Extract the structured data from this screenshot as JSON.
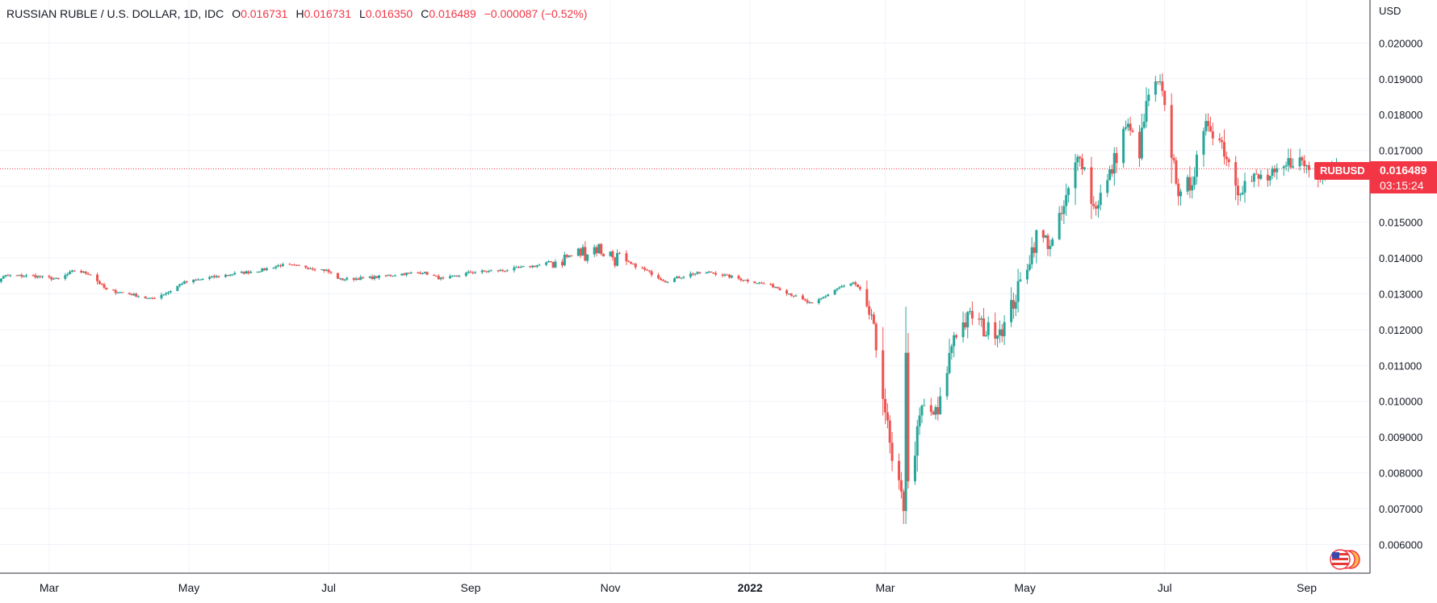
{
  "header": {
    "symbol": "RUSSIAN RUBLE / U.S. DOLLAR, 1D, IDC",
    "open_label": "O",
    "open": "0.016731",
    "high_label": "H",
    "high": "0.016731",
    "low_label": "L",
    "low": "0.016350",
    "close_label": "C",
    "close": "0.016489",
    "change": "−0.000087 (−0.52%)"
  },
  "price_axis": {
    "currency": "USD"
  },
  "last_price": {
    "symbol": "RUBUSD",
    "price": "0.016489",
    "countdown": "03:15:24"
  },
  "colors": {
    "up": "#26a69a",
    "down": "#ef5350",
    "grid": "#f0f3fa",
    "text": "#131722",
    "badge": "#f23645"
  },
  "icons": {
    "flag": "us-flag-icon"
  },
  "chart_data": {
    "type": "candlestick",
    "ylim": [
      0.0052,
      0.0212
    ],
    "y_ticks": [
      0.006,
      0.007,
      0.008,
      0.009,
      0.01,
      0.011,
      0.012,
      0.013,
      0.014,
      0.015,
      0.016,
      0.017,
      0.018,
      0.019,
      0.02
    ],
    "y_tick_labels": [
      "0.006000",
      "0.007000",
      "0.008000",
      "0.009000",
      "0.010000",
      "0.011000",
      "0.012000",
      "0.013000",
      "0.014000",
      "0.015000",
      "0.016000",
      "0.017000",
      "0.018000",
      "0.019000",
      "0.020000"
    ],
    "x_range": [
      "2021-01-29",
      "2022-09-17"
    ],
    "x_ticks": [
      {
        "date": "2021-03-01",
        "label": "Mar",
        "bold": false
      },
      {
        "date": "2021-05-01",
        "label": "May",
        "bold": false
      },
      {
        "date": "2021-07-01",
        "label": "Jul",
        "bold": false
      },
      {
        "date": "2021-09-01",
        "label": "Sep",
        "bold": false
      },
      {
        "date": "2021-11-01",
        "label": "Nov",
        "bold": false
      },
      {
        "date": "2022-01-01",
        "label": "2022",
        "bold": true
      },
      {
        "date": "2022-03-01",
        "label": "Mar",
        "bold": false
      },
      {
        "date": "2022-05-01",
        "label": "May",
        "bold": false
      },
      {
        "date": "2022-07-01",
        "label": "Jul",
        "bold": false
      },
      {
        "date": "2022-09-01",
        "label": "Sep",
        "bold": false
      }
    ],
    "last_close": 0.016489,
    "grid": true,
    "series_anchors": [
      [
        "2021-01-29",
        0.0131
      ],
      [
        "2021-02-10",
        0.0135
      ],
      [
        "2021-02-22",
        0.0135
      ],
      [
        "2021-03-05",
        0.0134
      ],
      [
        "2021-03-12",
        0.01365
      ],
      [
        "2021-03-19",
        0.01355
      ],
      [
        "2021-03-26",
        0.0131
      ],
      [
        "2021-04-05",
        0.013
      ],
      [
        "2021-04-14",
        0.01285
      ],
      [
        "2021-04-22",
        0.01305
      ],
      [
        "2021-04-28",
        0.0133
      ],
      [
        "2021-05-10",
        0.01345
      ],
      [
        "2021-05-20",
        0.01355
      ],
      [
        "2021-06-01",
        0.01365
      ],
      [
        "2021-06-10",
        0.0138
      ],
      [
        "2021-06-21",
        0.01375
      ],
      [
        "2021-06-30",
        0.01365
      ],
      [
        "2021-07-06",
        0.0134
      ],
      [
        "2021-07-20",
        0.01345
      ],
      [
        "2021-08-01",
        0.01355
      ],
      [
        "2021-08-11",
        0.0136
      ],
      [
        "2021-08-20",
        0.0134
      ],
      [
        "2021-09-01",
        0.0136
      ],
      [
        "2021-09-15",
        0.01365
      ],
      [
        "2021-10-01",
        0.0138
      ],
      [
        "2021-10-15",
        0.01405
      ],
      [
        "2021-10-26",
        0.0143
      ],
      [
        "2021-11-05",
        0.01395
      ],
      [
        "2021-11-15",
        0.0137
      ],
      [
        "2021-11-25",
        0.01335
      ],
      [
        "2021-12-06",
        0.01355
      ],
      [
        "2021-12-15",
        0.0136
      ],
      [
        "2021-12-25",
        0.01345
      ],
      [
        "2022-01-05",
        0.0133
      ],
      [
        "2022-01-12",
        0.0132
      ],
      [
        "2022-01-20",
        0.01295
      ],
      [
        "2022-01-28",
        0.0127
      ],
      [
        "2022-02-08",
        0.01315
      ],
      [
        "2022-02-15",
        0.0133
      ],
      [
        "2022-02-20",
        0.01295
      ],
      [
        "2022-02-24",
        0.0119
      ],
      [
        "2022-02-28",
        0.0103
      ],
      [
        "2022-03-04",
        0.0082
      ],
      [
        "2022-03-09",
        0.0071
      ],
      [
        "2022-03-10",
        0.0115
      ],
      [
        "2022-03-11",
        0.0076
      ],
      [
        "2022-03-17",
        0.0098
      ],
      [
        "2022-03-24",
        0.0096
      ],
      [
        "2022-03-31",
        0.0119
      ],
      [
        "2022-04-08",
        0.0124
      ],
      [
        "2022-04-14",
        0.01195
      ],
      [
        "2022-04-22",
        0.0121
      ],
      [
        "2022-04-28",
        0.0131
      ],
      [
        "2022-05-06",
        0.0146
      ],
      [
        "2022-05-13",
        0.0144
      ],
      [
        "2022-05-19",
        0.0156
      ],
      [
        "2022-05-25",
        0.017
      ],
      [
        "2022-05-31",
        0.0154
      ],
      [
        "2022-06-06",
        0.0161
      ],
      [
        "2022-06-14",
        0.0177
      ],
      [
        "2022-06-20",
        0.017
      ],
      [
        "2022-06-24",
        0.0186
      ],
      [
        "2022-06-29",
        0.0188
      ],
      [
        "2022-07-05",
        0.0166
      ],
      [
        "2022-07-08",
        0.0156
      ],
      [
        "2022-07-14",
        0.0164
      ],
      [
        "2022-07-20",
        0.0178
      ],
      [
        "2022-07-26",
        0.0172
      ],
      [
        "2022-08-02",
        0.016
      ],
      [
        "2022-08-10",
        0.0162
      ],
      [
        "2022-08-20",
        0.01625
      ],
      [
        "2022-08-26",
        0.0168
      ],
      [
        "2022-09-05",
        0.0164
      ],
      [
        "2022-09-12",
        0.0166
      ],
      [
        "2022-09-15",
        0.016489
      ]
    ]
  }
}
